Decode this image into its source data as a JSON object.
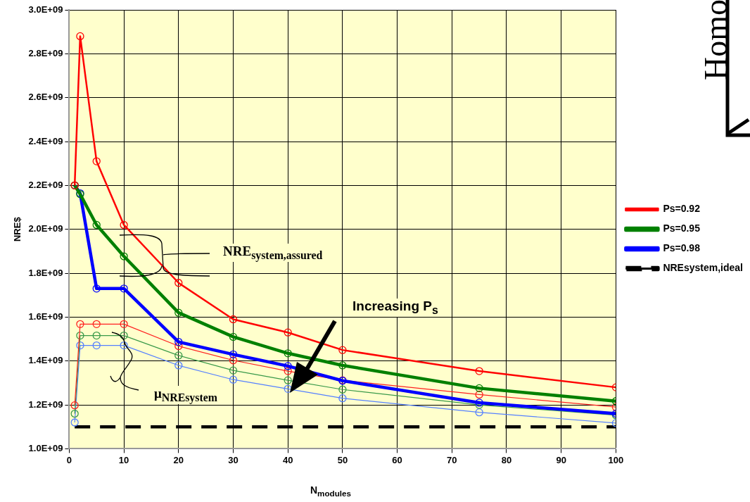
{
  "chart_data": {
    "type": "line",
    "xlabel": "N$_{modules}$",
    "ylabel": "NRE$",
    "x": [
      1,
      2,
      5,
      10,
      20,
      30,
      40,
      50,
      75,
      100
    ],
    "series": [
      {
        "name": "Ps=0.92",
        "color": "#ff0000",
        "values": [
          2200000000,
          2880000000,
          2310000000,
          2020000000,
          1756000000,
          1590000000,
          1530000000,
          1450000000,
          1354000000,
          1280000000
        ]
      },
      {
        "name": "Ps=0.95",
        "color": "#008000",
        "values": [
          2200000000,
          2160000000,
          2020000000,
          1877000000,
          1620000000,
          1510000000,
          1435000000,
          1380000000,
          1276000000,
          1217000000
        ]
      },
      {
        "name": "Ps=0.98",
        "color": "#0000ff",
        "values": [
          2200000000,
          2164000000,
          1730000000,
          1730000000,
          1487000000,
          1430000000,
          1377000000,
          1310000000,
          1210000000,
          1160000000
        ]
      },
      {
        "color": "#ff2020",
        "values": [
          1198000000,
          1568000000,
          1568000000,
          1568000000,
          1468000000,
          1403000000,
          1354000000,
          1312000000,
          1247000000,
          1190000000
        ]
      },
      {
        "color": "#3a9a4a",
        "values": [
          1160000000,
          1516000000,
          1516000000,
          1516000000,
          1425000000,
          1357000000,
          1312000000,
          1270000000,
          1200000000,
          1153000000
        ]
      },
      {
        "color": "#5580ff",
        "values": [
          1120000000,
          1471000000,
          1471000000,
          1471000000,
          1380000000,
          1315000000,
          1273000000,
          1230000000,
          1166000000,
          1117000000
        ]
      },
      {
        "name": "NREsystem,ideal",
        "color": "#000000",
        "marker": "none",
        "line_style": "dashed",
        "x": [
          1,
          100
        ],
        "values": [
          1100000000,
          1100000000
        ]
      }
    ],
    "xlim": [
      0,
      100
    ],
    "xticks": [
      0,
      10,
      20,
      30,
      40,
      50,
      60,
      70,
      80,
      90,
      100
    ],
    "ylim": [
      1000000000,
      3000000000
    ],
    "yticks": [
      {
        "value": 1000000000,
        "label": "1.0E+09"
      },
      {
        "value": 1200000000,
        "label": "1.2E+09"
      },
      {
        "value": 1400000000,
        "label": "1.4E+09"
      },
      {
        "value": 1600000000,
        "label": "1.6E+09"
      },
      {
        "value": 1800000000,
        "label": "1.8E+09"
      },
      {
        "value": 2000000000,
        "label": "2.0E+09"
      },
      {
        "value": 2200000000,
        "label": "2.2E+09"
      },
      {
        "value": 2400000000,
        "label": "2.4E+09"
      },
      {
        "value": 2600000000,
        "label": "2.6E+09"
      },
      {
        "value": 2800000000,
        "label": "2.8E+09"
      },
      {
        "value": 3000000000,
        "label": "3.0E+09"
      }
    ],
    "grid": true,
    "legend": "right",
    "marker": "circle",
    "line_style": "solid",
    "annotations": [
      "NRE$_{system,assured}$",
      "μ$_{NREsystem}$",
      "Increasing P$_{s}$",
      "Homo"
    ]
  }
}
